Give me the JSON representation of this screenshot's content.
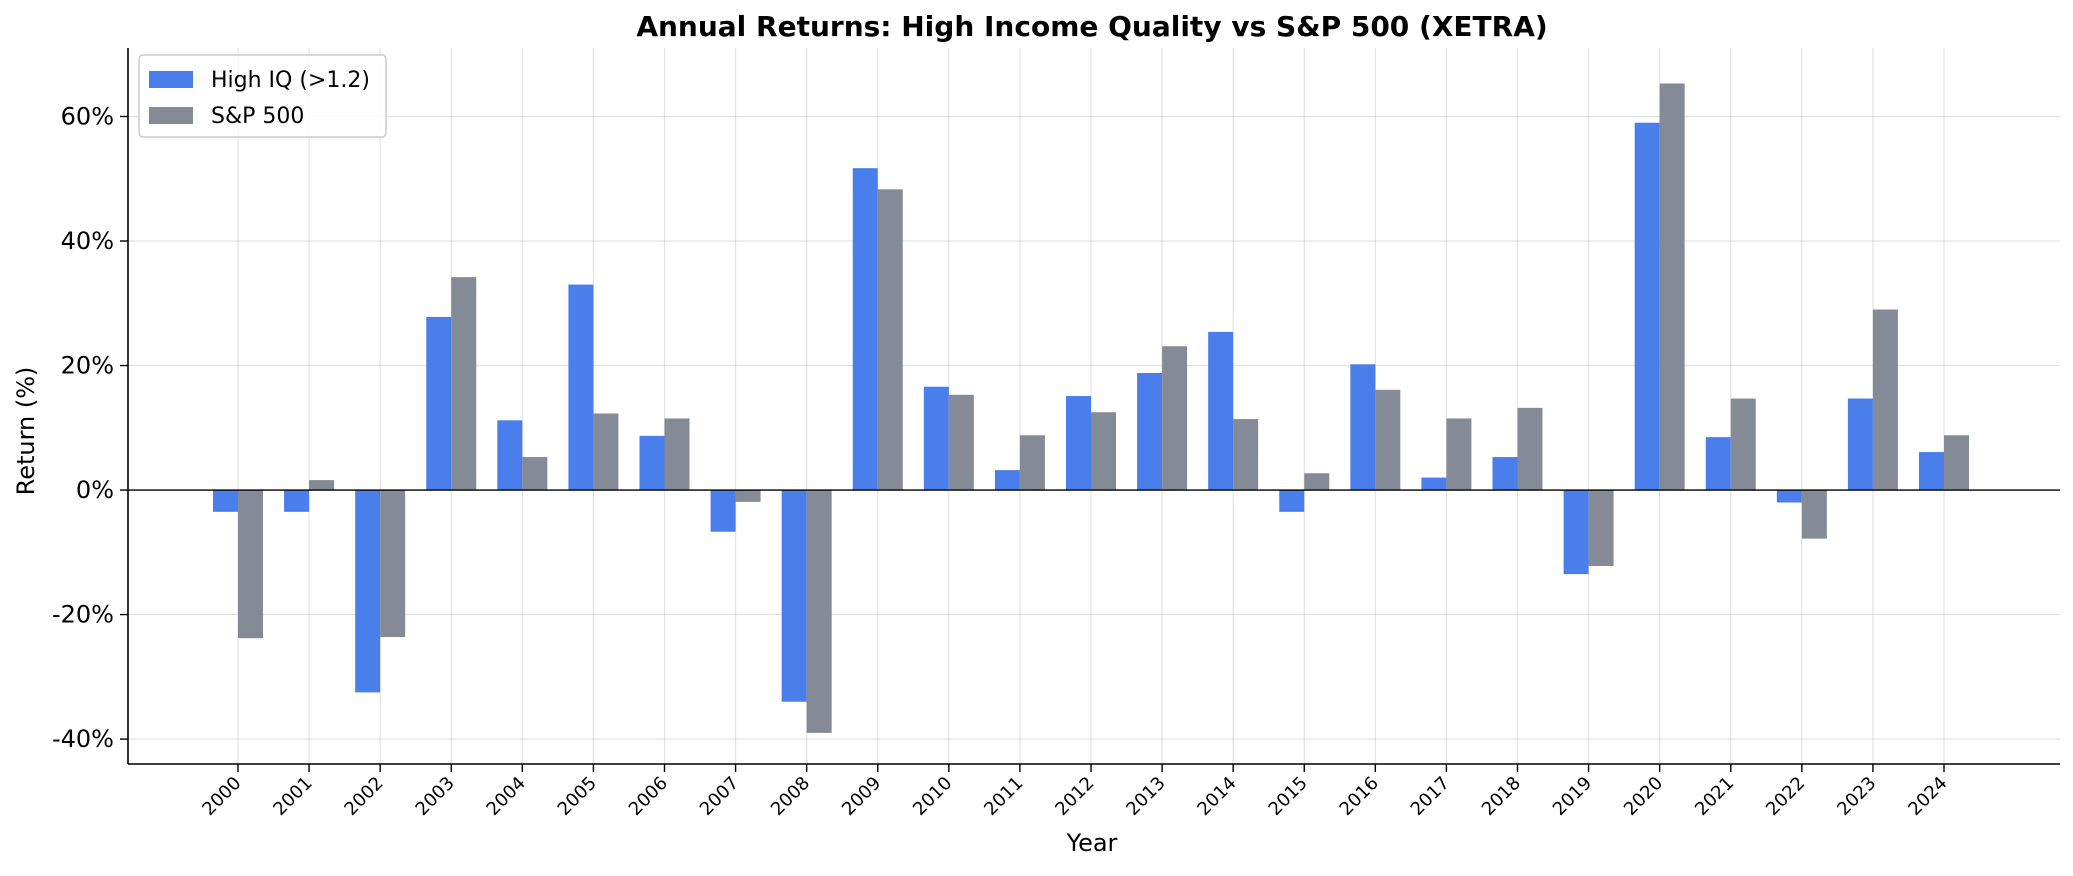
{
  "chart_data": {
    "type": "bar",
    "title": "Annual Returns: High Income Quality vs S&P 500 (XETRA)",
    "xlabel": "Year",
    "ylabel": "Return (%)",
    "ylim": [
      -44,
      71
    ],
    "yticks": [
      -40,
      -20,
      0,
      20,
      40,
      60
    ],
    "ytick_suffix": "%",
    "grid": true,
    "legend_position": "top-left",
    "categories": [
      "2000",
      "2001",
      "2002",
      "2003",
      "2004",
      "2005",
      "2006",
      "2007",
      "2008",
      "2009",
      "2010",
      "2011",
      "2012",
      "2013",
      "2014",
      "2015",
      "2016",
      "2017",
      "2018",
      "2019",
      "2020",
      "2021",
      "2022",
      "2023",
      "2024"
    ],
    "series": [
      {
        "name": "High IQ (>1.2)",
        "color": "#4a7eeb",
        "values": [
          -3.5,
          -3.5,
          -32.5,
          27.8,
          11.2,
          33.0,
          8.7,
          -6.7,
          -34.0,
          51.7,
          16.6,
          3.2,
          15.1,
          18.8,
          25.4,
          -3.5,
          20.2,
          2.0,
          5.3,
          -13.5,
          59.0,
          8.5,
          -2.0,
          14.7,
          6.1
        ]
      },
      {
        "name": "S&P 500",
        "color": "#858b96",
        "values": [
          -23.8,
          1.6,
          -23.6,
          34.2,
          5.3,
          12.3,
          11.5,
          -1.9,
          -39.0,
          48.3,
          15.3,
          8.8,
          12.5,
          23.1,
          11.4,
          2.7,
          16.1,
          11.5,
          13.2,
          -12.2,
          65.3,
          14.7,
          -7.8,
          29.0,
          8.8
        ]
      }
    ]
  }
}
